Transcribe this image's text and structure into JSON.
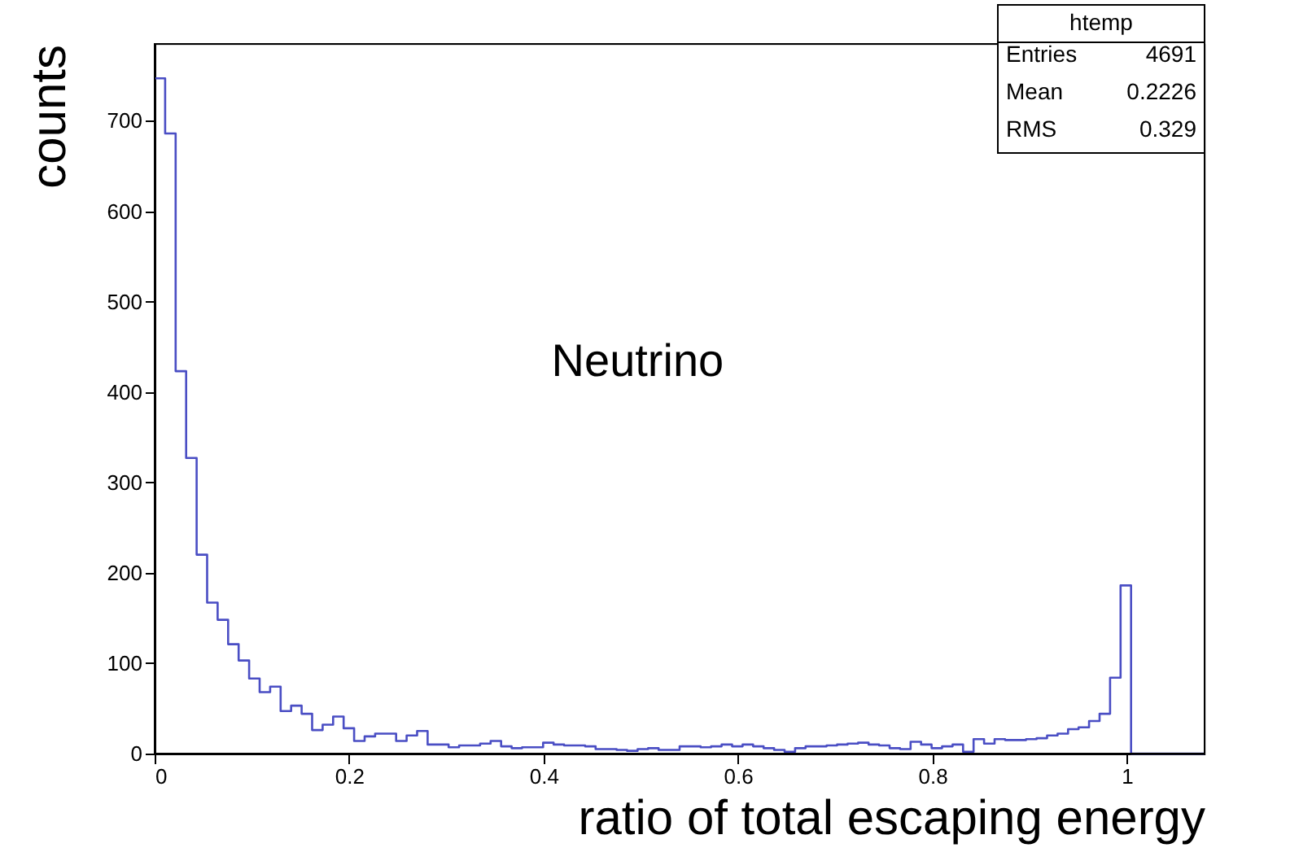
{
  "chart_data": {
    "type": "histogram",
    "xlabel": "ratio of total escaping energy",
    "ylabel": "counts",
    "bins": [
      0,
      0.0108,
      0.0216,
      0.0324,
      0.0432,
      0.054,
      0.0648,
      0.0756,
      0.0864,
      0.0972,
      0.108,
      0.1188,
      0.1296,
      0.1404,
      0.1512,
      0.162,
      0.1728,
      0.1836,
      0.1944,
      0.2052,
      0.216,
      0.2268,
      0.2376,
      0.2484,
      0.2592,
      0.27,
      0.2808,
      0.2916,
      0.3024,
      0.3132,
      0.324,
      0.3348,
      0.3456,
      0.3564,
      0.3672,
      0.378,
      0.3888,
      0.3996,
      0.4104,
      0.4212,
      0.432,
      0.4428,
      0.4536,
      0.4644,
      0.4752,
      0.486,
      0.4968,
      0.5076,
      0.5184,
      0.5292,
      0.54,
      0.5508,
      0.5616,
      0.5724,
      0.5832,
      0.594,
      0.6048,
      0.6156,
      0.6264,
      0.6372,
      0.648,
      0.6588,
      0.6696,
      0.6804,
      0.6912,
      0.702,
      0.7128,
      0.7236,
      0.7344,
      0.7452,
      0.756,
      0.7668,
      0.7776,
      0.7884,
      0.7992,
      0.81,
      0.8208,
      0.8316,
      0.8424,
      0.8532,
      0.864,
      0.8748,
      0.8856,
      0.8964,
      0.9072,
      0.918,
      0.9288,
      0.9396,
      0.9504,
      0.9612,
      0.972,
      0.9828,
      0.9936,
      1.0044,
      1.0152,
      1.026,
      1.0368,
      1.0476,
      1.0584,
      1.0692,
      1.08
    ],
    "values": [
      747,
      686,
      423,
      327,
      220,
      167,
      148,
      121,
      103,
      83,
      68,
      74,
      47,
      53,
      44,
      26,
      32,
      41,
      28,
      14,
      19,
      22,
      22,
      14,
      20,
      25,
      10,
      10,
      7,
      9,
      9,
      11,
      14,
      8,
      6,
      7,
      7,
      12,
      10,
      9,
      9,
      8,
      5,
      5,
      4,
      3,
      5,
      6,
      4,
      4,
      8,
      8,
      7,
      8,
      10,
      8,
      10,
      8,
      6,
      4,
      2,
      6,
      8,
      8,
      9,
      10,
      11,
      12,
      10,
      9,
      6,
      5,
      13,
      10,
      6,
      8,
      10,
      2,
      16,
      11,
      16,
      15,
      15,
      16,
      17,
      20,
      22,
      27,
      29,
      36,
      44,
      84,
      186,
      0,
      0,
      0,
      0,
      0,
      0,
      0
    ],
    "color": "#4a4ec4",
    "xlim": [
      0,
      1.08
    ],
    "xticks": [
      0,
      0.2,
      0.4,
      0.6,
      0.8,
      1
    ],
    "ylim": [
      0,
      785
    ],
    "yticks": [
      0,
      100,
      200,
      300,
      400,
      500,
      600,
      700
    ],
    "grid": false,
    "annotations": [
      "htemp",
      "Entries 4691",
      "Mean 0.2226",
      "RMS 0.329",
      "Neutrino"
    ]
  }
}
